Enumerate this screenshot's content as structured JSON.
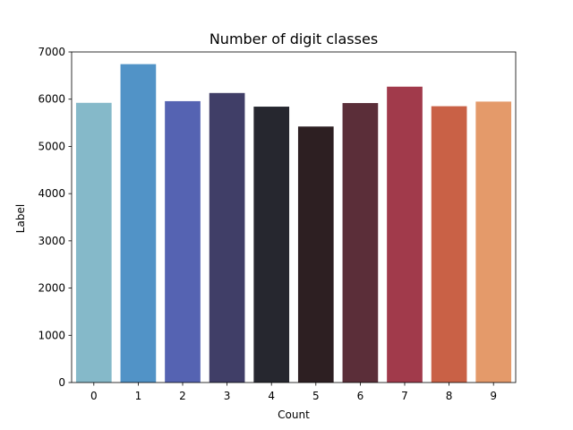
{
  "chart_data": {
    "type": "bar",
    "title": "Number of digit classes",
    "xlabel": "Count",
    "ylabel": "Label",
    "categories": [
      "0",
      "1",
      "2",
      "3",
      "4",
      "5",
      "6",
      "7",
      "8",
      "9"
    ],
    "values": [
      5923,
      6742,
      5958,
      6131,
      5842,
      5421,
      5918,
      6265,
      5851,
      5949
    ],
    "colors": [
      "#85b9c9",
      "#5193c7",
      "#5563b2",
      "#403e67",
      "#26272f",
      "#2d1f22",
      "#5b2e39",
      "#a13a4b",
      "#c96146",
      "#e49a6a"
    ],
    "ylim": [
      0,
      7000
    ],
    "yticks": [
      0,
      1000,
      2000,
      3000,
      4000,
      5000,
      6000,
      7000
    ],
    "grid": false,
    "legend": "none"
  }
}
